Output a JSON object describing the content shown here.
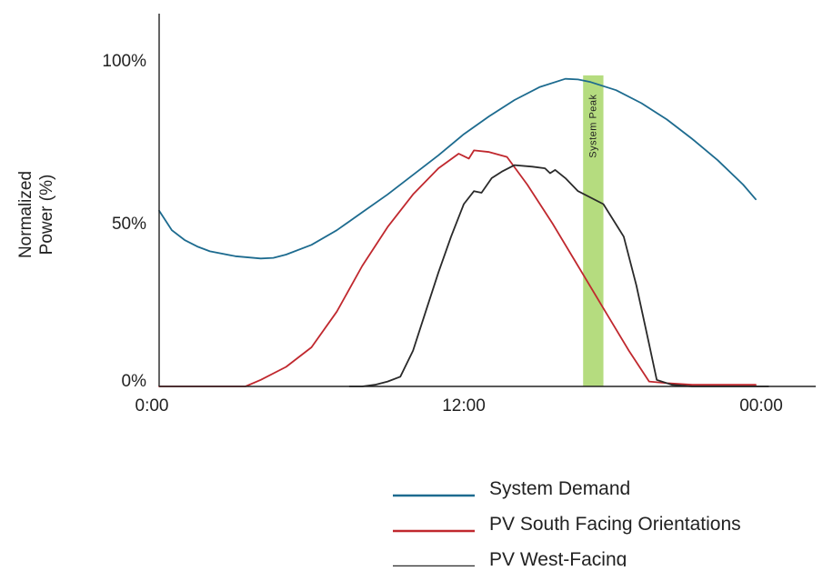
{
  "chart_data": {
    "type": "line",
    "title": "",
    "xlabel": "",
    "ylabel": "Normalized Power (%)",
    "ylabel_lines": [
      "Normalized",
      "Power (%)"
    ],
    "x_unit": "hours",
    "xlim": [
      0,
      24
    ],
    "ylim": [
      0,
      100
    ],
    "x_ticks": [
      {
        "value": 0,
        "label": "0:00"
      },
      {
        "value": 12,
        "label": "12:00"
      },
      {
        "value": 24,
        "label": "00:00"
      }
    ],
    "y_ticks": [
      {
        "value": 0,
        "label": "0%"
      },
      {
        "value": 50,
        "label": "50%"
      },
      {
        "value": 100,
        "label": "100%"
      }
    ],
    "grid": false,
    "legend_position": "bottom-right",
    "annotations": [
      {
        "type": "vertical-band",
        "x_start": 16.7,
        "x_end": 17.5,
        "label": "System Peak",
        "color": "#b5dc7f"
      }
    ],
    "series": [
      {
        "name": "System Demand",
        "color": "#1d6b8f",
        "points": [
          [
            0,
            54
          ],
          [
            0.5,
            48
          ],
          [
            1,
            45
          ],
          [
            1.5,
            43
          ],
          [
            2,
            41.5
          ],
          [
            3,
            40
          ],
          [
            4,
            39.3
          ],
          [
            4.5,
            39.5
          ],
          [
            5,
            40.5
          ],
          [
            6,
            43.5
          ],
          [
            7,
            48
          ],
          [
            8,
            53.5
          ],
          [
            9,
            59
          ],
          [
            10,
            65
          ],
          [
            11,
            71
          ],
          [
            12,
            77.5
          ],
          [
            13,
            83
          ],
          [
            14,
            88
          ],
          [
            15,
            92
          ],
          [
            16,
            94.5
          ],
          [
            16.5,
            94.3
          ],
          [
            17,
            93.5
          ],
          [
            18,
            91
          ],
          [
            19,
            87
          ],
          [
            20,
            82
          ],
          [
            21,
            76
          ],
          [
            22,
            69.5
          ],
          [
            23,
            62
          ],
          [
            23.5,
            57.5
          ]
        ]
      },
      {
        "name": "PV South Facing Orientations",
        "color": "#c0282e",
        "points": [
          [
            0,
            0
          ],
          [
            1,
            0
          ],
          [
            2,
            0
          ],
          [
            3,
            0
          ],
          [
            3.4,
            0
          ],
          [
            4,
            2
          ],
          [
            5,
            6
          ],
          [
            6,
            12
          ],
          [
            7,
            23
          ],
          [
            8,
            37
          ],
          [
            9,
            49
          ],
          [
            10,
            59
          ],
          [
            11,
            67
          ],
          [
            11.8,
            71.5
          ],
          [
            12.2,
            70
          ],
          [
            12.4,
            72.5
          ],
          [
            13,
            72
          ],
          [
            13.7,
            70.5
          ],
          [
            14.5,
            62
          ],
          [
            15.5,
            50
          ],
          [
            16.5,
            37
          ],
          [
            17.5,
            24
          ],
          [
            18.5,
            11
          ],
          [
            19.3,
            1.5
          ],
          [
            20,
            1
          ],
          [
            21,
            0.5
          ],
          [
            23.5,
            0.5
          ]
        ]
      },
      {
        "name": "PV West-Facing",
        "color": "#2a2a2a",
        "points": [
          [
            7.5,
            0
          ],
          [
            8,
            0
          ],
          [
            8.5,
            0.5
          ],
          [
            9,
            1.5
          ],
          [
            9.5,
            3
          ],
          [
            10,
            11
          ],
          [
            10.5,
            23
          ],
          [
            11,
            35
          ],
          [
            11.5,
            46
          ],
          [
            12,
            56
          ],
          [
            12.4,
            60
          ],
          [
            12.7,
            59.5
          ],
          [
            13.1,
            64
          ],
          [
            13.5,
            66
          ],
          [
            14,
            68
          ],
          [
            14.7,
            67.5
          ],
          [
            15.2,
            67
          ],
          [
            15.4,
            65.5
          ],
          [
            15.6,
            66.5
          ],
          [
            16,
            64
          ],
          [
            16.5,
            60
          ],
          [
            17.5,
            56
          ],
          [
            18.3,
            46
          ],
          [
            18.8,
            31
          ],
          [
            19.3,
            13
          ],
          [
            19.6,
            2
          ],
          [
            20.2,
            0.5
          ],
          [
            21,
            0
          ],
          [
            24,
            0
          ]
        ]
      }
    ]
  }
}
